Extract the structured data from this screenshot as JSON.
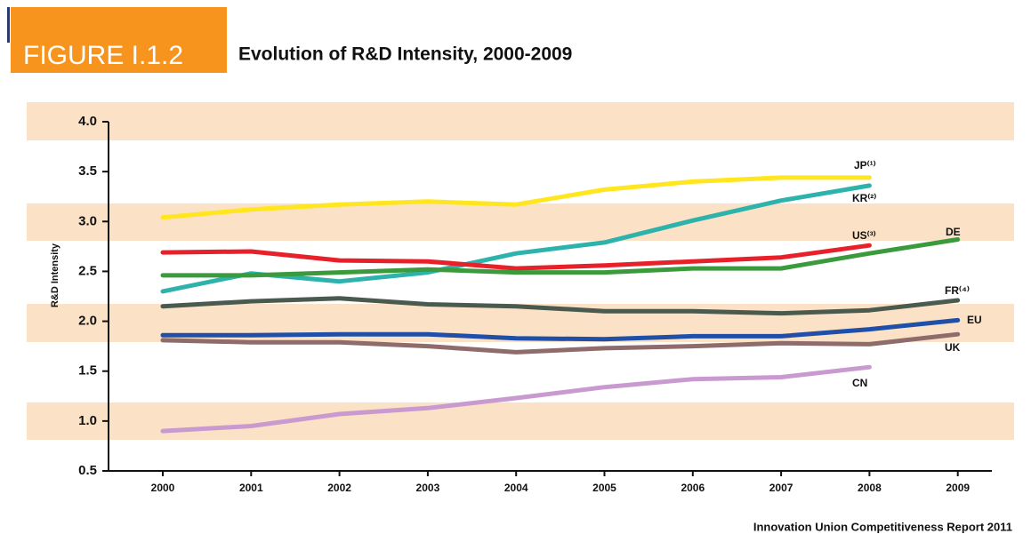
{
  "header": {
    "figure": "FIGURE I.1.2"
  },
  "chart_data": {
    "type": "line",
    "title": "Evolution of R&D Intensity, 2000-2009",
    "ylabel": "R&D Intensity",
    "source": "Innovation Union Competitiveness Report 2011",
    "categories": [
      "2000",
      "2001",
      "2002",
      "2003",
      "2004",
      "2005",
      "2006",
      "2007",
      "2008",
      "2009"
    ],
    "ylim": [
      0.5,
      4.0
    ],
    "yticks": [
      0.5,
      {
        "value": 1.0,
        "label": "1.0"
      },
      1.5,
      {
        "value": 2.0,
        "label": "2.0"
      },
      2.5,
      {
        "value": 3.0,
        "label": "3.0"
      },
      3.5,
      {
        "value": 4.0,
        "label": "4.0"
      }
    ],
    "series": [
      {
        "name": "JP⁽¹⁾",
        "color": "#ffe61e",
        "values": [
          3.04,
          3.12,
          3.17,
          3.2,
          3.17,
          3.32,
          3.4,
          3.44,
          3.44,
          null
        ]
      },
      {
        "name": "KR⁽²⁾",
        "color": "#2db3ab",
        "values": [
          2.3,
          2.48,
          2.4,
          2.49,
          2.68,
          2.79,
          3.01,
          3.21,
          3.36,
          null
        ]
      },
      {
        "name": "US⁽³⁾",
        "color": "#e8202a",
        "values": [
          2.69,
          2.7,
          2.61,
          2.6,
          2.53,
          2.56,
          2.6,
          2.64,
          2.76,
          null
        ]
      },
      {
        "name": "DE",
        "color": "#3a9a3c",
        "values": [
          2.46,
          2.46,
          2.49,
          2.52,
          2.49,
          2.49,
          2.53,
          2.53,
          2.68,
          2.82
        ]
      },
      {
        "name": "FR⁽⁴⁾",
        "color": "#4a5a4e",
        "values": [
          2.15,
          2.2,
          2.23,
          2.17,
          2.15,
          2.1,
          2.1,
          2.08,
          2.11,
          2.21
        ]
      },
      {
        "name": "EU",
        "color": "#1f4fa8",
        "values": [
          1.86,
          1.86,
          1.87,
          1.87,
          1.83,
          1.82,
          1.85,
          1.85,
          1.92,
          2.01
        ]
      },
      {
        "name": "UK",
        "color": "#8f6b6b",
        "values": [
          1.81,
          1.79,
          1.79,
          1.75,
          1.69,
          1.73,
          1.75,
          1.78,
          1.77,
          1.87
        ]
      },
      {
        "name": "CN",
        "color": "#c99ad0",
        "values": [
          0.9,
          0.95,
          1.07,
          1.13,
          1.23,
          1.34,
          1.42,
          1.44,
          1.54,
          null
        ]
      }
    ]
  }
}
